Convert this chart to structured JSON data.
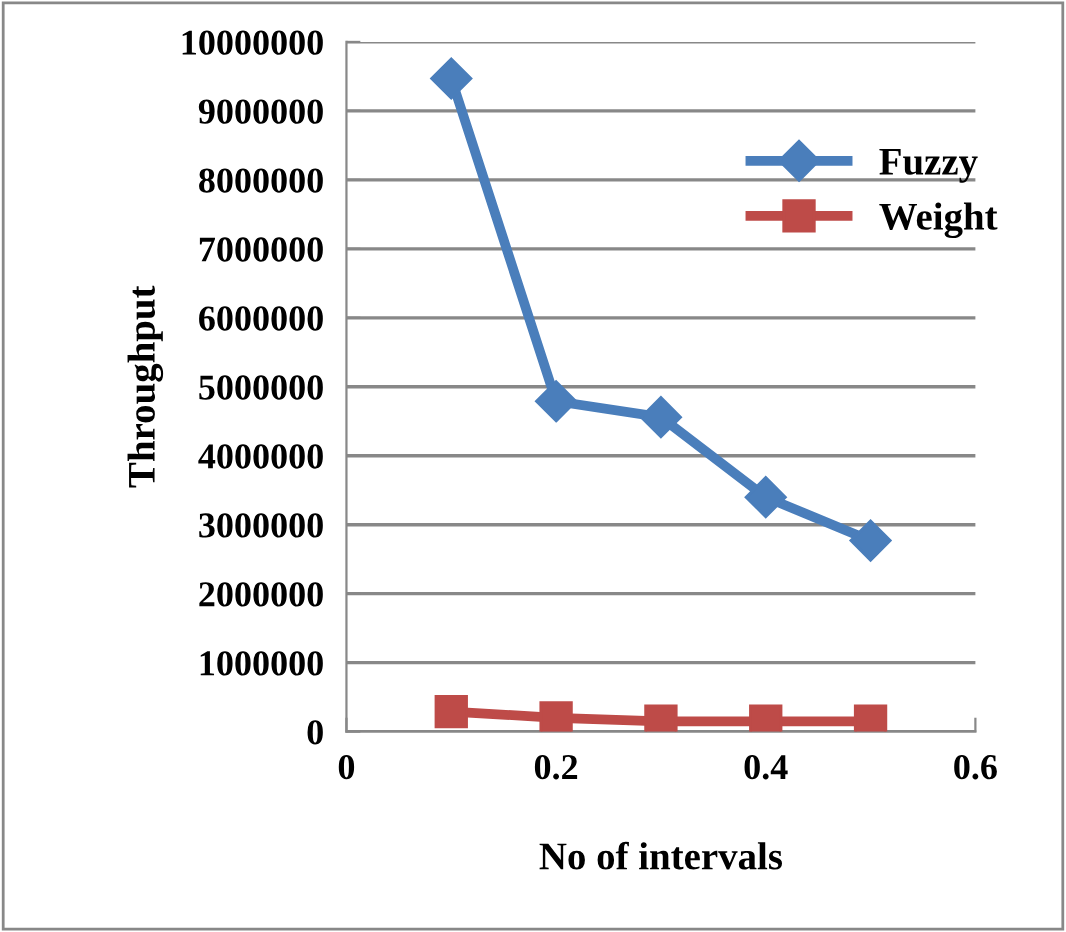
{
  "chart_data": {
    "type": "line",
    "xlabel": "No of intervals",
    "ylabel": "Throughput",
    "x": [
      0.1,
      0.2,
      0.3,
      0.4,
      0.5
    ],
    "series": [
      {
        "name": "Fuzzy",
        "color": "#4a7ebb",
        "marker": "diamond",
        "values": [
          9470000,
          4790000,
          4560000,
          3400000,
          2770000
        ]
      },
      {
        "name": "Weight",
        "color": "#be4b48",
        "marker": "square",
        "values": [
          290000,
          200000,
          150000,
          150000,
          150000
        ]
      }
    ],
    "xlim": [
      0,
      0.6
    ],
    "xticks": [
      0,
      0.2,
      0.4,
      0.6
    ],
    "ylim": [
      0,
      10000000
    ],
    "yticks": [
      0,
      1000000,
      2000000,
      3000000,
      4000000,
      5000000,
      6000000,
      7000000,
      8000000,
      9000000,
      10000000
    ],
    "grid": "y",
    "legend": "top right",
    "line_style": "solid"
  }
}
